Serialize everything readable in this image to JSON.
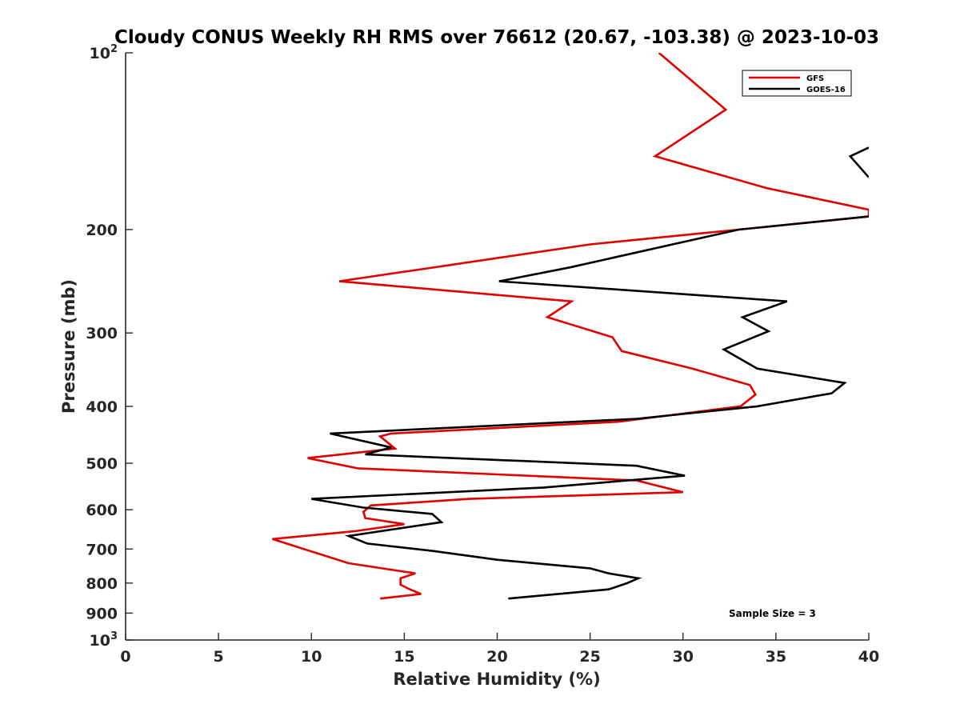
{
  "chart_data": {
    "type": "line",
    "title": "Cloudy CONUS Weekly RH RMS over 76612 (20.67, -103.38) @ 2023-10-03",
    "xlabel": "Relative Humidity (%)",
    "ylabel": "Pressure (mb)",
    "xlim": [
      0,
      40
    ],
    "ylim": [
      100,
      1000
    ],
    "y_scale": "log",
    "y_reversed": true,
    "xticks": [
      0,
      5,
      10,
      15,
      20,
      25,
      30,
      35,
      40
    ],
    "xtick_labels": [
      "0",
      "5",
      "10",
      "15",
      "20",
      "25",
      "30",
      "35",
      "40"
    ],
    "yticks": [
      100,
      200,
      300,
      400,
      500,
      600,
      700,
      800,
      900,
      1000
    ],
    "ytick_labels": [
      {
        "base": "10",
        "sup": "2"
      },
      {
        "base": "200",
        "sup": ""
      },
      {
        "base": "300",
        "sup": ""
      },
      {
        "base": "400",
        "sup": ""
      },
      {
        "base": "500",
        "sup": ""
      },
      {
        "base": "600",
        "sup": ""
      },
      {
        "base": "700",
        "sup": ""
      },
      {
        "base": "800",
        "sup": ""
      },
      {
        "base": "900",
        "sup": ""
      },
      {
        "base": "10",
        "sup": "3"
      }
    ],
    "legend_position": "top-right",
    "annotation": "Sample Size = 3",
    "series": [
      {
        "name": "GFS",
        "color": "#e00000",
        "points": [
          [
            28.7,
            100
          ],
          [
            32.3,
            125
          ],
          [
            28.5,
            150
          ],
          [
            34.5,
            170
          ],
          [
            40,
            185
          ],
          [
            40,
            190
          ],
          [
            33,
            200
          ],
          [
            25,
            212
          ],
          [
            11.5,
            245
          ],
          [
            24,
            265
          ],
          [
            22.7,
            282
          ],
          [
            26.2,
            305
          ],
          [
            26.7,
            322
          ],
          [
            30.5,
            345
          ],
          [
            33.6,
            368
          ],
          [
            33.9,
            382
          ],
          [
            33.1,
            400
          ],
          [
            26.5,
            425
          ],
          [
            14.3,
            445
          ],
          [
            13.7,
            450
          ],
          [
            14.5,
            472
          ],
          [
            9.8,
            490
          ],
          [
            12.5,
            510
          ],
          [
            27.5,
            535
          ],
          [
            30,
            560
          ],
          [
            18.5,
            575
          ],
          [
            13.2,
            590
          ],
          [
            12.8,
            605
          ],
          [
            12.9,
            620
          ],
          [
            15,
            635
          ],
          [
            12.3,
            653
          ],
          [
            7.9,
            673
          ],
          [
            10.2,
            710
          ],
          [
            12,
            740
          ],
          [
            15.6,
            770
          ],
          [
            14.8,
            785
          ],
          [
            14.8,
            805
          ],
          [
            15.3,
            820
          ],
          [
            15.9,
            835
          ],
          [
            13.7,
            850
          ]
        ]
      },
      {
        "name": "GOES-16",
        "color": "#000000",
        "segments": [
          [
            [
              40,
              145
            ],
            [
              39,
              150
            ],
            [
              40,
              163
            ]
          ],
          [
            [
              40,
              190
            ],
            [
              33,
              200
            ],
            [
              23.9,
              232
            ],
            [
              20.1,
              245
            ],
            [
              35.6,
              265
            ],
            [
              33.2,
              282
            ],
            [
              34.6,
              298
            ],
            [
              32.2,
              320
            ],
            [
              34,
              345
            ],
            [
              38.7,
              365
            ],
            [
              38,
              380
            ],
            [
              34,
              400
            ],
            [
              27.5,
              420
            ],
            [
              11,
              445
            ],
            [
              14.3,
              470
            ],
            [
              12.9,
              483
            ],
            [
              27.5,
              505
            ],
            [
              30.1,
              525
            ],
            [
              22.5,
              550
            ],
            [
              10,
              575
            ],
            [
              12.8,
              595
            ],
            [
              16.5,
              610
            ],
            [
              17,
              630
            ],
            [
              12,
              665
            ],
            [
              13,
              685
            ],
            [
              16.5,
              705
            ],
            [
              20,
              730
            ],
            [
              25,
              755
            ],
            [
              26,
              770
            ],
            [
              27.6,
              785
            ],
            [
              27,
              800
            ],
            [
              26,
              820
            ],
            [
              20.6,
              850
            ]
          ]
        ]
      }
    ]
  }
}
